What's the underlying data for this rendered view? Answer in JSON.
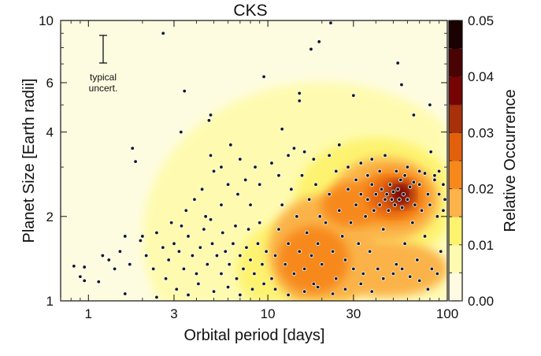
{
  "chart_data": {
    "type": "scatter",
    "title": "CKS",
    "xlabel": "Orbital period [days]",
    "ylabel": "Planet Size [Earth radii]",
    "xscale": "log",
    "yscale": "log",
    "xlim": [
      0.7,
      100
    ],
    "ylim": [
      1,
      10
    ],
    "xticks": [
      {
        "value": 1,
        "label": "1"
      },
      {
        "value": 3,
        "label": "3"
      },
      {
        "value": 10,
        "label": "10"
      },
      {
        "value": 30,
        "label": "30"
      },
      {
        "value": 100,
        "label": "100"
      }
    ],
    "yticks": [
      {
        "value": 1,
        "label": "1"
      },
      {
        "value": 2,
        "label": "2"
      },
      {
        "value": 4,
        "label": "4"
      },
      {
        "value": 6,
        "label": "6"
      },
      {
        "value": 10,
        "label": "10"
      }
    ],
    "annotation": {
      "line1": "typical",
      "line2": "uncert.",
      "errorbar_radius_center": 7.9,
      "errorbar_frac": 0.12
    },
    "colorbar": {
      "label": "Relative Occurrence",
      "range": [
        0,
        0.05
      ],
      "ticks": [
        "0.00",
        "0.01",
        "0.02",
        "0.03",
        "0.04",
        "0.05"
      ],
      "levels": [
        0,
        0.005,
        0.01,
        0.015,
        0.02,
        0.025,
        0.03,
        0.035,
        0.04,
        0.045,
        0.05
      ],
      "colors": [
        "#fffbe3",
        "#fefbb0",
        "#fdf36f",
        "#fbb34a",
        "#f7891c",
        "#e2600c",
        "#a8300a",
        "#760404",
        "#4a0303",
        "#1a0202"
      ]
    },
    "background_color": "#fefce0",
    "density_regions": [
      {
        "period": 20,
        "radius": 1.7,
        "sp": 1.0,
        "sr": 0.55,
        "level": 1
      },
      {
        "period": 8,
        "radius": 1.5,
        "sp": 0.55,
        "sr": 0.35,
        "level": 1
      },
      {
        "period": 40,
        "radius": 2.3,
        "sp": 0.45,
        "sr": 0.22,
        "level": 2
      },
      {
        "period": 15,
        "radius": 1.3,
        "sp": 0.35,
        "sr": 0.18,
        "level": 2
      },
      {
        "period": 45,
        "radius": 2.3,
        "sp": 0.3,
        "sr": 0.15,
        "level": 3
      },
      {
        "period": 20,
        "radius": 1.5,
        "sp": 0.3,
        "sr": 0.2,
        "level": 3
      },
      {
        "period": 45,
        "radius": 1.3,
        "sp": 0.35,
        "sr": 0.1,
        "level": 3
      },
      {
        "period": 50,
        "radius": 2.35,
        "sp": 0.2,
        "sr": 0.1,
        "level": 4
      },
      {
        "period": 30,
        "radius": 2.2,
        "sp": 0.18,
        "sr": 0.08,
        "level": 4
      },
      {
        "period": 18,
        "radius": 1.4,
        "sp": 0.2,
        "sr": 0.12,
        "level": 4
      },
      {
        "period": 50,
        "radius": 2.35,
        "sp": 0.14,
        "sr": 0.07,
        "level": 5
      },
      {
        "period": 55,
        "radius": 2.4,
        "sp": 0.08,
        "sr": 0.05,
        "level": 6
      },
      {
        "period": 55,
        "radius": 2.4,
        "sp": 0.04,
        "sr": 0.03,
        "level": 7
      }
    ],
    "points": [
      [
        2.61,
        9.0
      ],
      [
        22.4,
        9.8
      ],
      [
        19.3,
        8.4
      ],
      [
        17.4,
        7.9
      ],
      [
        53,
        7.05
      ],
      [
        55.6,
        5.9
      ],
      [
        9.5,
        6.3
      ],
      [
        15,
        5.5
      ],
      [
        15,
        5.17
      ],
      [
        3.43,
        5.6
      ],
      [
        3.28,
        4.0
      ],
      [
        4.8,
        4.6
      ],
      [
        4.7,
        4.4
      ],
      [
        4.8,
        3.3
      ],
      [
        1.76,
        3.5
      ],
      [
        1.83,
        3.14
      ],
      [
        2.0,
        1.7
      ],
      [
        1.95,
        1.64
      ],
      [
        1.6,
        1.7
      ],
      [
        0.83,
        1.33
      ],
      [
        0.9,
        1.22
      ],
      [
        0.95,
        1.18
      ],
      [
        0.95,
        1.32
      ],
      [
        1.14,
        1.17
      ],
      [
        1.6,
        1.06
      ],
      [
        2.4,
        1.03
      ],
      [
        80,
        5.0
      ],
      [
        81,
        3.4
      ],
      [
        65,
        4.6
      ],
      [
        30,
        5.4
      ],
      [
        12,
        4.1
      ],
      [
        6.2,
        3.6
      ],
      [
        5.5,
        3.0
      ],
      [
        7.0,
        3.2
      ],
      [
        8.5,
        3.0
      ],
      [
        5.0,
        2.9
      ],
      [
        6.0,
        2.6
      ],
      [
        4.3,
        2.5
      ],
      [
        3.9,
        2.3
      ],
      [
        3.5,
        2.1
      ],
      [
        4.5,
        2.0
      ],
      [
        5.5,
        2.2
      ],
      [
        6.8,
        2.4
      ],
      [
        7.5,
        2.7
      ],
      [
        8.0,
        2.2
      ],
      [
        9.0,
        2.6
      ],
      [
        10.5,
        3.1
      ],
      [
        11.5,
        2.8
      ],
      [
        13,
        3.3
      ],
      [
        14,
        3.5
      ],
      [
        16,
        3.4
      ],
      [
        18,
        3.2
      ],
      [
        22,
        3.3
      ],
      [
        25,
        3.6
      ],
      [
        28,
        3.0
      ],
      [
        33,
        3.1
      ],
      [
        38,
        3.2
      ],
      [
        45,
        3.3
      ],
      [
        60,
        3.0
      ],
      [
        70,
        2.9
      ],
      [
        85,
        2.8
      ],
      [
        95,
        2.6
      ],
      [
        1.2,
        1.45
      ],
      [
        1.3,
        1.4
      ],
      [
        1.5,
        1.5
      ],
      [
        1.4,
        1.3
      ],
      [
        1.7,
        1.35
      ],
      [
        2.1,
        1.45
      ],
      [
        2.3,
        1.3
      ],
      [
        2.6,
        1.55
      ],
      [
        2.8,
        1.4
      ],
      [
        3.0,
        1.6
      ],
      [
        3.2,
        1.5
      ],
      [
        3.4,
        1.3
      ],
      [
        3.6,
        1.7
      ],
      [
        3.8,
        1.45
      ],
      [
        4.0,
        1.25
      ],
      [
        4.2,
        1.55
      ],
      [
        4.4,
        1.8
      ],
      [
        4.6,
        1.35
      ],
      [
        4.9,
        1.6
      ],
      [
        5.2,
        1.45
      ],
      [
        5.5,
        1.25
      ],
      [
        5.8,
        1.5
      ],
      [
        6.1,
        1.35
      ],
      [
        6.4,
        1.6
      ],
      [
        6.7,
        1.2
      ],
      [
        7.0,
        1.45
      ],
      [
        7.3,
        1.3
      ],
      [
        7.6,
        1.55
      ],
      [
        8.0,
        1.4
      ],
      [
        8.4,
        1.25
      ],
      [
        8.8,
        1.6
      ],
      [
        9.3,
        1.35
      ],
      [
        9.8,
        1.5
      ],
      [
        3.1,
        1.1
      ],
      [
        3.6,
        1.05
      ],
      [
        4.1,
        1.15
      ],
      [
        5.0,
        1.08
      ],
      [
        6.0,
        1.12
      ],
      [
        7.0,
        1.05
      ],
      [
        8.2,
        1.1
      ],
      [
        9.5,
        1.15
      ],
      [
        2.7,
        1.2
      ],
      [
        2.4,
        1.75
      ],
      [
        2.9,
        1.9
      ],
      [
        3.3,
        1.85
      ],
      [
        4.8,
        1.95
      ],
      [
        5.6,
        1.75
      ],
      [
        6.6,
        1.85
      ],
      [
        7.8,
        1.8
      ],
      [
        9.0,
        1.9
      ],
      [
        10.5,
        1.2
      ],
      [
        11,
        1.45
      ],
      [
        11.5,
        1.8
      ],
      [
        12,
        2.2
      ],
      [
        12.5,
        1.35
      ],
      [
        13,
        1.6
      ],
      [
        13.5,
        2.5
      ],
      [
        14,
        1.25
      ],
      [
        14.5,
        2.0
      ],
      [
        15,
        1.5
      ],
      [
        15.5,
        2.8
      ],
      [
        16,
        1.3
      ],
      [
        16.5,
        1.75
      ],
      [
        17,
        2.3
      ],
      [
        17.5,
        1.45
      ],
      [
        18,
        1.15
      ],
      [
        18.5,
        2.6
      ],
      [
        19,
        1.6
      ],
      [
        19.5,
        2.0
      ],
      [
        20,
        1.35
      ],
      [
        21,
        1.9
      ],
      [
        22,
        2.4
      ],
      [
        23,
        1.5
      ],
      [
        24,
        1.2
      ],
      [
        25,
        2.1
      ],
      [
        26,
        1.7
      ],
      [
        27,
        1.4
      ],
      [
        28,
        2.5
      ],
      [
        29,
        1.9
      ],
      [
        30,
        1.3
      ],
      [
        31,
        2.2
      ],
      [
        32,
        1.6
      ],
      [
        33,
        2.4
      ],
      [
        34,
        1.25
      ],
      [
        35,
        2.0
      ],
      [
        36,
        2.3
      ],
      [
        37,
        1.5
      ],
      [
        38,
        2.6
      ],
      [
        39,
        2.1
      ],
      [
        40,
        2.4
      ],
      [
        41,
        1.3
      ],
      [
        42,
        2.2
      ],
      [
        43,
        2.5
      ],
      [
        44,
        1.8
      ],
      [
        45,
        2.3
      ],
      [
        46,
        2.4
      ],
      [
        47,
        2.1
      ],
      [
        48,
        2.6
      ],
      [
        49,
        2.3
      ],
      [
        50,
        2.45
      ],
      [
        51,
        2.2
      ],
      [
        52,
        1.35
      ],
      [
        53,
        2.5
      ],
      [
        54,
        2.3
      ],
      [
        55,
        2.7
      ],
      [
        56,
        2.15
      ],
      [
        57,
        2.4
      ],
      [
        58,
        1.6
      ],
      [
        60,
        2.3
      ],
      [
        62,
        2.55
      ],
      [
        64,
        1.9
      ],
      [
        66,
        2.2
      ],
      [
        68,
        1.4
      ],
      [
        70,
        2.6
      ],
      [
        72,
        2.1
      ],
      [
        75,
        1.7
      ],
      [
        78,
        2.4
      ],
      [
        80,
        2.2
      ],
      [
        82,
        1.3
      ],
      [
        85,
        2.7
      ],
      [
        88,
        2.0
      ],
      [
        90,
        2.4
      ],
      [
        92,
        1.5
      ],
      [
        95,
        2.1
      ],
      [
        97,
        2.3
      ],
      [
        11,
        1.1
      ],
      [
        13,
        1.05
      ],
      [
        16,
        1.08
      ],
      [
        19,
        1.12
      ],
      [
        23,
        1.06
      ],
      [
        27,
        1.1
      ],
      [
        33,
        1.15
      ],
      [
        38,
        1.08
      ],
      [
        44,
        1.2
      ],
      [
        50,
        1.25
      ],
      [
        56,
        1.3
      ],
      [
        62,
        1.22
      ],
      [
        70,
        1.18
      ],
      [
        78,
        1.1
      ],
      [
        88,
        1.25
      ],
      [
        24,
        2.9
      ],
      [
        31,
        2.7
      ],
      [
        36,
        2.8
      ],
      [
        42,
        2.9
      ],
      [
        52,
        2.9
      ],
      [
        58,
        2.8
      ],
      [
        65,
        2.65
      ],
      [
        75,
        2.85
      ],
      [
        90,
        2.9
      ]
    ]
  }
}
